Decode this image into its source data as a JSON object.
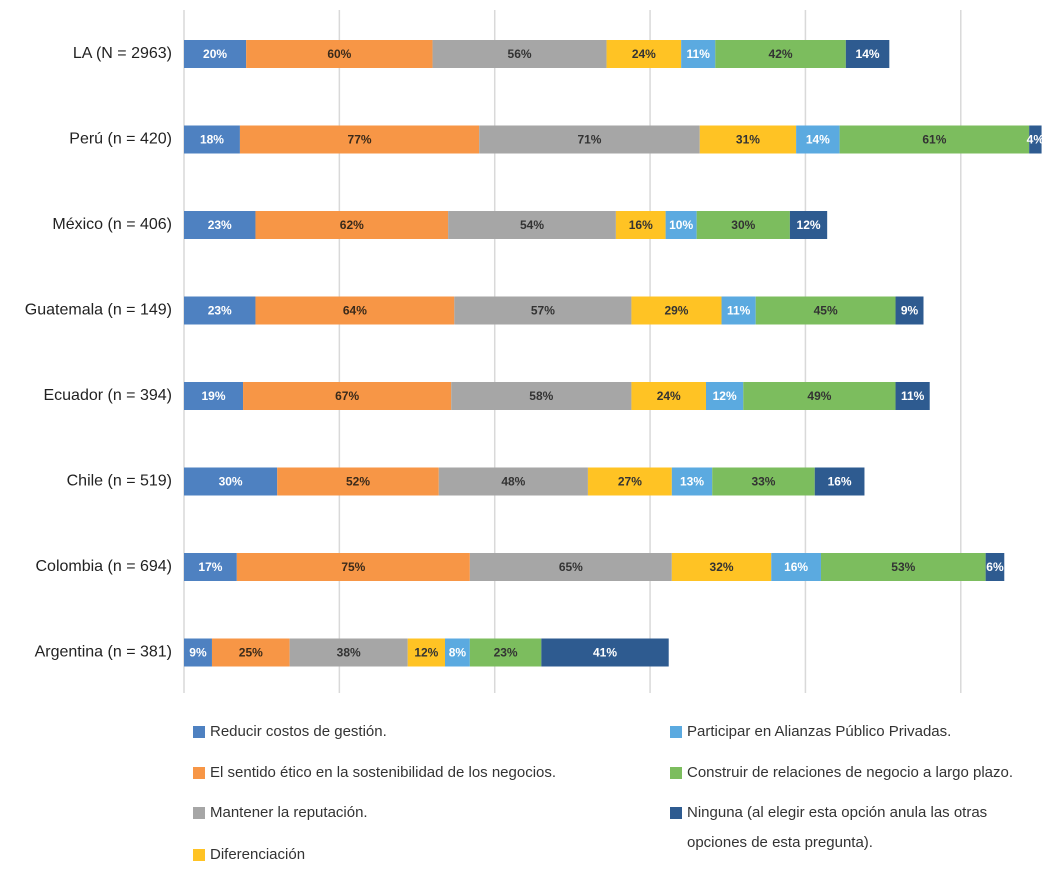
{
  "chart_data": {
    "type": "stacked_barh",
    "categories": [
      "LA (N = 2963)",
      "Perú (n = 420)",
      "México (n = 406)",
      "Guatemala (n = 149)",
      "Ecuador (n = 394)",
      "Chile (n = 519)",
      "Colombia (n = 694)",
      "Argentina (n = 381)"
    ],
    "xlim": [
      0,
      280
    ],
    "xticks": [
      0,
      50,
      100,
      150,
      200,
      250
    ],
    "grid": true,
    "series": [
      {
        "name": "Reducir costos de gestión.",
        "color": "#4e81c1",
        "label_color": "#ffffff",
        "values": [
          20,
          18,
          23,
          23,
          19,
          30,
          17,
          9
        ],
        "value_labels": [
          "20%",
          "18%",
          "23%",
          "23%",
          "19%",
          "30%",
          "17%",
          "9%"
        ]
      },
      {
        "name": "El sentido ético en la sostenibilidad de los negocios.",
        "color": "#f79646",
        "label_color": "#3a2a1a",
        "values": [
          60,
          77,
          62,
          64,
          67,
          52,
          75,
          25
        ],
        "value_labels": [
          "60%",
          "77%",
          "62%",
          "64%",
          "67%",
          "52%",
          "75%",
          "25%"
        ]
      },
      {
        "name": "Mantener la reputación.",
        "color": "#a6a6a6",
        "label_color": "#333333",
        "values": [
          56,
          71,
          54,
          57,
          58,
          48,
          65,
          38
        ],
        "value_labels": [
          "56%",
          "71%",
          "54%",
          "57%",
          "58%",
          "48%",
          "65%",
          "38%"
        ]
      },
      {
        "name": "Diferenciación",
        "color": "#ffc324",
        "label_color": "#333333",
        "values": [
          24,
          31,
          16,
          29,
          24,
          27,
          32,
          12
        ],
        "value_labels": [
          "24%",
          "31%",
          "16%",
          "29%",
          "24%",
          "27%",
          "32%",
          "12%"
        ]
      },
      {
        "name": "Participar en Alianzas Público Privadas.",
        "color": "#5baae0",
        "label_color": "#ffffff",
        "values": [
          11,
          14,
          10,
          11,
          12,
          13,
          16,
          8
        ],
        "value_labels": [
          "11%",
          "14%",
          "10%",
          "11%",
          "12%",
          "13%",
          "16%",
          "8%"
        ]
      },
      {
        "name": "Construir de relaciones de negocio a largo plazo.",
        "color": "#7cbd5e",
        "label_color": "#333333",
        "values": [
          42,
          61,
          30,
          45,
          49,
          33,
          53,
          23
        ],
        "value_labels": [
          "42%",
          "61%",
          "30%",
          "45%",
          "49%",
          "33%",
          "53%",
          "23%"
        ]
      },
      {
        "name": "Ninguna (al elegir esta opción anula las otras opciones de esta pregunta).",
        "color": "#2e5b90",
        "label_color": "#ffffff",
        "values": [
          14,
          4,
          12,
          9,
          11,
          16,
          6,
          41
        ],
        "value_labels": [
          "14%",
          "4%",
          "12%",
          "9%",
          "11%",
          "16%",
          "6%",
          "41%"
        ]
      }
    ]
  }
}
